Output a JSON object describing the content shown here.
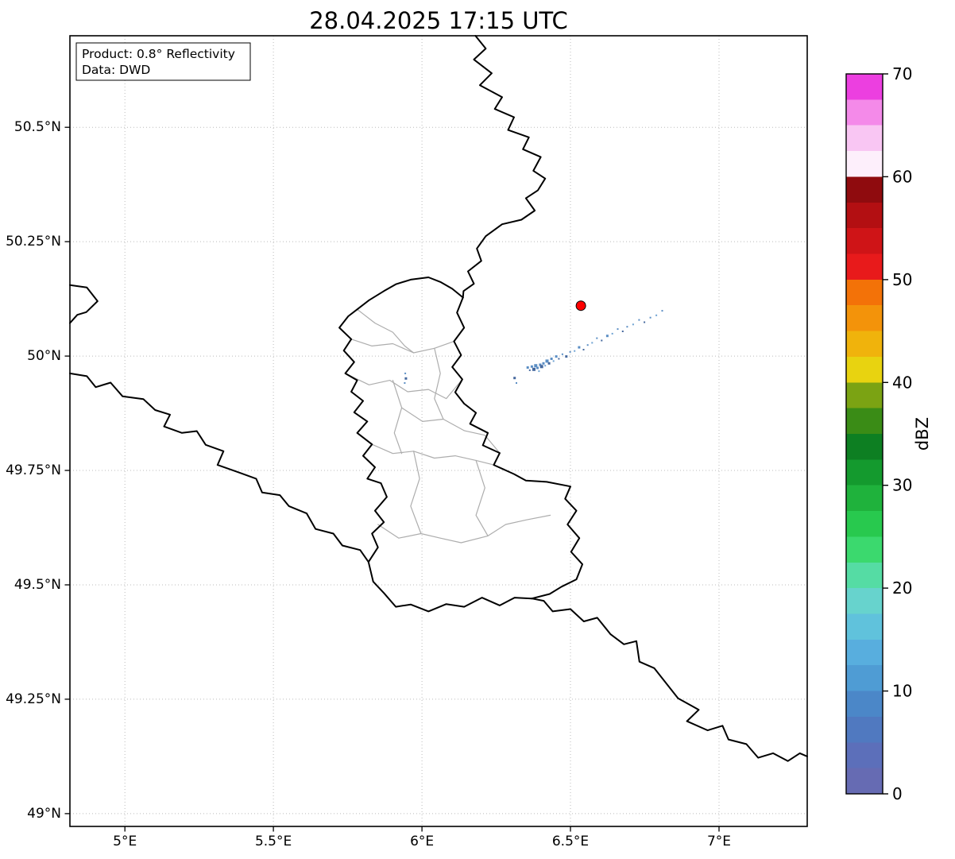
{
  "title": "28.04.2025 17:15 UTC",
  "annotation": {
    "line1": "Product: 0.8° Reflectivity",
    "line2": "Data: DWD"
  },
  "axes": {
    "x_ticks": [
      {
        "value": 5.0,
        "label": "5°E"
      },
      {
        "value": 5.5,
        "label": "5.5°E"
      },
      {
        "value": 6.0,
        "label": "6°E"
      },
      {
        "value": 6.5,
        "label": "6.5°E"
      },
      {
        "value": 7.0,
        "label": "7°E"
      }
    ],
    "y_ticks": [
      {
        "value": 50.5,
        "label": "50.5°N"
      },
      {
        "value": 50.25,
        "label": "50.25°N"
      },
      {
        "value": 50.0,
        "label": "50°N"
      },
      {
        "value": 49.75,
        "label": "49.75°N"
      },
      {
        "value": 49.5,
        "label": "49.5°N"
      },
      {
        "value": 49.25,
        "label": "49.25°N"
      },
      {
        "value": 49.0,
        "label": "49°N"
      }
    ]
  },
  "map": {
    "extent": {
      "lon_min": 4.815,
      "lon_max": 7.297,
      "lat_min": 48.972,
      "lat_max": 50.7
    },
    "border_color": "#000000",
    "canton_color": "#adadad",
    "grid_color": "#bbbbbb",
    "national_borders": [
      [
        [
          6.18,
          50.7
        ],
        [
          6.215,
          50.672
        ],
        [
          6.175,
          50.648
        ],
        [
          6.235,
          50.618
        ],
        [
          6.195,
          50.592
        ],
        [
          6.27,
          50.566
        ],
        [
          6.245,
          50.54
        ],
        [
          6.31,
          50.522
        ],
        [
          6.29,
          50.494
        ],
        [
          6.36,
          50.478
        ],
        [
          6.34,
          50.452
        ],
        [
          6.4,
          50.435
        ],
        [
          6.375,
          50.405
        ],
        [
          6.415,
          50.388
        ],
        [
          6.39,
          50.362
        ],
        [
          6.35,
          50.345
        ],
        [
          6.38,
          50.318
        ],
        [
          6.335,
          50.298
        ],
        [
          6.27,
          50.288
        ],
        [
          6.215,
          50.262
        ],
        [
          6.185,
          50.235
        ],
        [
          6.2,
          50.208
        ],
        [
          6.155,
          50.185
        ],
        [
          6.175,
          50.158
        ],
        [
          6.14,
          50.142
        ],
        [
          6.138,
          50.128
        ]
      ],
      [
        [
          6.138,
          50.128
        ],
        [
          6.118,
          50.095
        ],
        [
          6.142,
          50.062
        ],
        [
          6.108,
          50.032
        ],
        [
          6.132,
          50.002
        ],
        [
          6.102,
          49.976
        ],
        [
          6.136,
          49.949
        ],
        [
          6.112,
          49.921
        ],
        [
          6.142,
          49.896
        ],
        [
          6.182,
          49.876
        ],
        [
          6.162,
          49.852
        ],
        [
          6.222,
          49.832
        ],
        [
          6.205,
          49.805
        ],
        [
          6.262,
          49.788
        ],
        [
          6.242,
          49.762
        ],
        [
          6.31,
          49.742
        ],
        [
          6.35,
          49.728
        ],
        [
          6.42,
          49.725
        ],
        [
          6.5,
          49.715
        ],
        [
          6.482,
          49.688
        ],
        [
          6.52,
          49.662
        ],
        [
          6.49,
          49.632
        ],
        [
          6.53,
          49.602
        ],
        [
          6.502,
          49.572
        ],
        [
          6.54,
          49.545
        ],
        [
          6.52,
          49.512
        ],
        [
          6.47,
          49.496
        ],
        [
          6.43,
          49.48
        ],
        [
          6.37,
          49.47
        ]
      ],
      [
        [
          6.37,
          49.47
        ],
        [
          6.41,
          49.465
        ],
        [
          6.44,
          49.442
        ],
        [
          6.5,
          49.447
        ],
        [
          6.545,
          49.42
        ],
        [
          6.59,
          49.428
        ],
        [
          6.635,
          49.392
        ],
        [
          6.68,
          49.37
        ],
        [
          6.722,
          49.377
        ],
        [
          6.732,
          49.332
        ],
        [
          6.782,
          49.318
        ],
        [
          6.822,
          49.285
        ],
        [
          6.862,
          49.252
        ],
        [
          6.932,
          49.227
        ],
        [
          6.892,
          49.202
        ],
        [
          6.962,
          49.182
        ],
        [
          7.012,
          49.192
        ],
        [
          7.032,
          49.162
        ],
        [
          7.092,
          49.152
        ],
        [
          7.132,
          49.122
        ],
        [
          7.182,
          49.132
        ],
        [
          7.232,
          49.115
        ],
        [
          7.272,
          49.132
        ],
        [
          7.297,
          49.125
        ]
      ],
      [
        [
          4.815,
          49.962
        ],
        [
          4.872,
          49.956
        ],
        [
          4.902,
          49.932
        ],
        [
          4.952,
          49.942
        ],
        [
          4.992,
          49.912
        ],
        [
          5.062,
          49.906
        ],
        [
          5.102,
          49.882
        ],
        [
          5.152,
          49.872
        ],
        [
          5.132,
          49.846
        ],
        [
          5.192,
          49.832
        ],
        [
          5.242,
          49.836
        ],
        [
          5.272,
          49.806
        ],
        [
          5.332,
          49.792
        ],
        [
          5.312,
          49.762
        ],
        [
          5.382,
          49.746
        ],
        [
          5.442,
          49.732
        ],
        [
          5.462,
          49.702
        ],
        [
          5.522,
          49.696
        ],
        [
          5.552,
          49.672
        ],
        [
          5.612,
          49.656
        ],
        [
          5.642,
          49.622
        ],
        [
          5.702,
          49.612
        ],
        [
          5.732,
          49.586
        ],
        [
          5.792,
          49.576
        ],
        [
          5.82,
          49.55
        ]
      ],
      [
        [
          4.815,
          50.155
        ],
        [
          4.872,
          50.15
        ],
        [
          4.908,
          50.12
        ],
        [
          4.87,
          50.096
        ],
        [
          4.84,
          50.09
        ],
        [
          4.815,
          50.072
        ]
      ],
      [
        [
          6.37,
          49.47
        ],
        [
          6.312,
          49.472
        ],
        [
          6.262,
          49.455
        ],
        [
          6.202,
          49.472
        ],
        [
          6.142,
          49.452
        ],
        [
          6.082,
          49.458
        ],
        [
          6.022,
          49.442
        ],
        [
          5.962,
          49.457
        ],
        [
          5.912,
          49.452
        ],
        [
          5.872,
          49.482
        ],
        [
          5.836,
          49.507
        ],
        [
          5.82,
          49.55
        ],
        [
          5.852,
          49.582
        ],
        [
          5.832,
          49.612
        ],
        [
          5.872,
          49.637
        ],
        [
          5.842,
          49.662
        ],
        [
          5.882,
          49.692
        ],
        [
          5.862,
          49.722
        ],
        [
          5.816,
          49.732
        ],
        [
          5.842,
          49.757
        ],
        [
          5.802,
          49.782
        ],
        [
          5.832,
          49.807
        ],
        [
          5.782,
          49.832
        ],
        [
          5.816,
          49.857
        ],
        [
          5.772,
          49.877
        ],
        [
          5.802,
          49.902
        ],
        [
          5.762,
          49.922
        ],
        [
          5.782,
          49.947
        ],
        [
          5.742,
          49.962
        ],
        [
          5.772,
          49.987
        ],
        [
          5.737,
          50.012
        ],
        [
          5.762,
          50.037
        ],
        [
          5.722,
          50.062
        ],
        [
          5.752,
          50.087
        ],
        [
          5.782,
          50.102
        ],
        [
          5.822,
          50.122
        ],
        [
          5.872,
          50.142
        ],
        [
          5.912,
          50.157
        ],
        [
          5.962,
          50.167
        ],
        [
          6.022,
          50.172
        ],
        [
          6.062,
          50.162
        ],
        [
          6.102,
          50.147
        ],
        [
          6.138,
          50.128
        ]
      ]
    ],
    "canton_borders": [
      [
        [
          5.762,
          50.037
        ],
        [
          5.832,
          50.022
        ],
        [
          5.902,
          50.027
        ],
        [
          5.972,
          50.007
        ],
        [
          6.042,
          50.017
        ],
        [
          6.108,
          50.032
        ]
      ],
      [
        [
          5.742,
          49.962
        ],
        [
          5.822,
          49.937
        ],
        [
          5.892,
          49.947
        ],
        [
          5.952,
          49.922
        ],
        [
          6.022,
          49.927
        ],
        [
          6.082,
          49.907
        ],
        [
          6.136,
          49.949
        ]
      ],
      [
        [
          6.042,
          50.017
        ],
        [
          6.062,
          49.962
        ],
        [
          6.042,
          49.907
        ],
        [
          6.072,
          49.862
        ],
        [
          6.142,
          49.837
        ]
      ],
      [
        [
          5.902,
          49.947
        ],
        [
          5.932,
          49.887
        ],
        [
          5.907,
          49.832
        ],
        [
          5.932,
          49.787
        ]
      ],
      [
        [
          5.932,
          49.887
        ],
        [
          6.002,
          49.857
        ],
        [
          6.072,
          49.862
        ]
      ],
      [
        [
          5.832,
          49.807
        ],
        [
          5.902,
          49.787
        ],
        [
          5.972,
          49.792
        ],
        [
          6.042,
          49.777
        ],
        [
          6.112,
          49.782
        ],
        [
          6.182,
          49.772
        ],
        [
          6.242,
          49.762
        ]
      ],
      [
        [
          5.972,
          49.792
        ],
        [
          5.992,
          49.732
        ],
        [
          5.962,
          49.672
        ],
        [
          5.997,
          49.612
        ]
      ],
      [
        [
          6.182,
          49.772
        ],
        [
          6.212,
          49.712
        ],
        [
          6.182,
          49.652
        ],
        [
          6.222,
          49.607
        ]
      ],
      [
        [
          5.852,
          49.632
        ],
        [
          5.922,
          49.602
        ],
        [
          5.997,
          49.612
        ],
        [
          6.062,
          49.602
        ],
        [
          6.132,
          49.592
        ],
        [
          6.222,
          49.607
        ],
        [
          6.282,
          49.632
        ],
        [
          6.352,
          49.642
        ],
        [
          6.432,
          49.652
        ]
      ],
      [
        [
          6.142,
          49.837
        ],
        [
          6.212,
          49.827
        ],
        [
          6.262,
          49.788
        ]
      ],
      [
        [
          5.782,
          50.102
        ],
        [
          5.842,
          50.072
        ],
        [
          5.902,
          50.052
        ],
        [
          5.942,
          50.022
        ],
        [
          5.972,
          50.007
        ]
      ]
    ]
  },
  "radar": {
    "site_marker": {
      "lon": 6.535,
      "lat": 50.11,
      "color": "#ff0000",
      "edge": "#000000"
    },
    "echo_palette": [
      "#5b8ec4",
      "#46699e",
      "#6fa3d3"
    ],
    "echoes": [
      [
        6.312,
        49.952,
        3,
        1
      ],
      [
        6.318,
        49.941,
        2,
        0
      ],
      [
        6.356,
        49.975,
        3,
        0
      ],
      [
        6.363,
        49.969,
        2,
        1
      ],
      [
        6.37,
        49.977,
        3,
        0
      ],
      [
        6.377,
        49.971,
        4,
        1
      ],
      [
        6.383,
        49.979,
        4,
        0
      ],
      [
        6.389,
        49.974,
        3,
        0
      ],
      [
        6.394,
        49.967,
        2,
        2
      ],
      [
        6.398,
        49.981,
        3,
        0
      ],
      [
        6.403,
        49.977,
        4,
        1
      ],
      [
        6.409,
        49.984,
        3,
        0
      ],
      [
        6.415,
        49.979,
        2,
        2
      ],
      [
        6.421,
        49.989,
        4,
        0
      ],
      [
        6.428,
        49.984,
        3,
        1
      ],
      [
        6.436,
        49.994,
        3,
        0
      ],
      [
        6.443,
        49.989,
        2,
        2
      ],
      [
        6.452,
        49.999,
        3,
        0
      ],
      [
        6.461,
        49.994,
        2,
        1
      ],
      [
        6.473,
        50.004,
        2,
        0
      ],
      [
        6.486,
        49.999,
        3,
        1
      ],
      [
        6.499,
        50.009,
        2,
        0
      ],
      [
        6.514,
        50.011,
        2,
        2
      ],
      [
        6.529,
        50.019,
        3,
        0
      ],
      [
        6.544,
        50.014,
        2,
        1
      ],
      [
        6.558,
        50.024,
        2,
        0
      ],
      [
        6.573,
        50.029,
        2,
        2
      ],
      [
        6.589,
        50.039,
        2,
        0
      ],
      [
        6.605,
        50.034,
        2,
        1
      ],
      [
        6.624,
        50.044,
        3,
        0
      ],
      [
        6.641,
        50.049,
        2,
        2
      ],
      [
        6.659,
        50.059,
        2,
        0
      ],
      [
        6.676,
        50.054,
        2,
        1
      ],
      [
        6.691,
        50.064,
        2,
        0
      ],
      [
        6.711,
        50.069,
        2,
        2
      ],
      [
        6.731,
        50.079,
        2,
        0
      ],
      [
        6.749,
        50.074,
        2,
        1
      ],
      [
        6.769,
        50.084,
        2,
        0
      ],
      [
        6.789,
        50.089,
        2,
        2
      ],
      [
        6.809,
        50.099,
        2,
        0
      ],
      [
        5.944,
        49.962,
        2,
        0
      ],
      [
        5.946,
        49.951,
        3,
        1
      ],
      [
        5.942,
        49.941,
        2,
        0
      ]
    ]
  },
  "colorbar": {
    "label": "dBZ",
    "min": 0,
    "max": 70,
    "ticks": [
      0,
      10,
      20,
      30,
      40,
      50,
      60,
      70
    ],
    "segments": [
      [
        0,
        2.5,
        "#666bb3"
      ],
      [
        2.5,
        5,
        "#5c6fba"
      ],
      [
        5,
        7.5,
        "#5079c0"
      ],
      [
        7.5,
        10,
        "#4b87c8"
      ],
      [
        10,
        12.5,
        "#4f9cd4"
      ],
      [
        12.5,
        15,
        "#58aede"
      ],
      [
        15,
        17.5,
        "#60c2dc"
      ],
      [
        17.5,
        20,
        "#67d3cd"
      ],
      [
        20,
        22.5,
        "#55dca4"
      ],
      [
        22.5,
        25,
        "#3bd96e"
      ],
      [
        25,
        27.5,
        "#28c94e"
      ],
      [
        27.5,
        30,
        "#1fb23c"
      ],
      [
        30,
        32.5,
        "#149a2e"
      ],
      [
        32.5,
        35,
        "#0d7f22"
      ],
      [
        35,
        37.5,
        "#3a8c16"
      ],
      [
        37.5,
        40,
        "#7ba313"
      ],
      [
        40,
        42.5,
        "#e8d310"
      ],
      [
        42.5,
        45,
        "#f0b30c"
      ],
      [
        45,
        47.5,
        "#f3930a"
      ],
      [
        47.5,
        50,
        "#f37208"
      ],
      [
        50,
        52.5,
        "#e81a1b"
      ],
      [
        52.5,
        55,
        "#cf1417"
      ],
      [
        55,
        57.5,
        "#b30f12"
      ],
      [
        57.5,
        60,
        "#8f0b0e"
      ],
      [
        60,
        62.5,
        "#fdeffb"
      ],
      [
        62.5,
        65,
        "#f9c6f3"
      ],
      [
        65,
        67.5,
        "#f48ae9"
      ],
      [
        67.5,
        70,
        "#ec3fe0"
      ]
    ]
  },
  "chart_data": {
    "type": "map",
    "title": "28.04.2025 17:15 UTC",
    "product": "Product: 0.8° Reflectivity",
    "source": "Data: DWD",
    "x_axis": {
      "ticks": [
        5,
        5.5,
        6,
        6.5,
        7
      ],
      "tick_format": "°E",
      "range": [
        4.815,
        7.297
      ]
    },
    "y_axis": {
      "ticks": [
        49,
        49.25,
        49.5,
        49.75,
        50,
        50.25,
        50.5
      ],
      "tick_format": "°N",
      "range": [
        48.972,
        50.7
      ]
    },
    "colorbar": {
      "label": "dBZ",
      "range": [
        0,
        70
      ],
      "ticks": [
        0,
        10,
        20,
        30,
        40,
        50,
        60,
        70
      ]
    },
    "radar_site_marker": {
      "lon": 6.535,
      "lat": 50.11
    },
    "approx_echo_dbz_range": [
      0,
      10
    ]
  }
}
